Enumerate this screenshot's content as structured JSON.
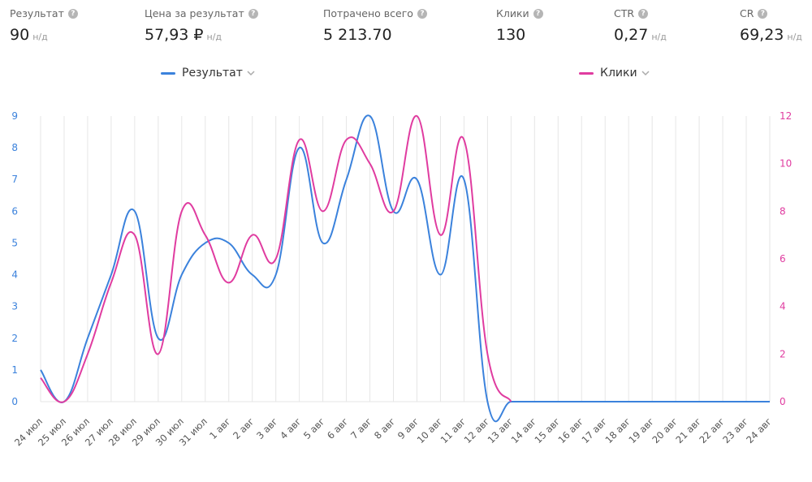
{
  "metrics": [
    {
      "label": "Результат",
      "value": "90",
      "unit": "н/д"
    },
    {
      "label": "Цена за результат",
      "value": "57,93 ₽",
      "unit": "н/д"
    },
    {
      "label": "Потрачено всего",
      "value": "5 213.70",
      "unit": ""
    },
    {
      "label": "Клики",
      "value": "130",
      "unit": ""
    },
    {
      "label": "CTR",
      "value": "0,27",
      "unit": "н/д"
    },
    {
      "label": "CR",
      "value": "69,23",
      "unit": "н/д"
    }
  ],
  "legend": {
    "left": {
      "label": "Результат",
      "color": "#3b82dc"
    },
    "right": {
      "label": "Клики",
      "color": "#e03ca0"
    }
  },
  "chart_data": {
    "type": "line",
    "categories": [
      "24 июл",
      "25 июл",
      "26 июл",
      "27 июл",
      "28 июл",
      "29 июл",
      "30 июл",
      "31 июл",
      "1 авг",
      "2 авг",
      "3 авг",
      "4 авг",
      "5 авг",
      "6 авг",
      "7 авг",
      "8 авг",
      "9 авг",
      "10 авг",
      "11 авг",
      "12 авг",
      "13 авг",
      "14 авг",
      "15 авг",
      "16 авг",
      "17 авг",
      "18 авг",
      "19 авг",
      "20 авг",
      "21 авг",
      "22 авг",
      "23 авг",
      "24 авг"
    ],
    "series": [
      {
        "name": "Результат",
        "axis": "left",
        "color": "#3b82dc",
        "values": [
          1,
          0,
          2,
          4,
          6,
          2,
          4,
          5,
          5,
          4,
          4,
          8,
          5,
          7,
          9,
          6,
          7,
          4,
          7,
          0,
          0,
          0,
          0,
          0,
          0,
          0,
          0,
          0,
          0,
          0,
          0,
          0
        ]
      },
      {
        "name": "Клики",
        "axis": "right",
        "color": "#e03ca0",
        "values": [
          1,
          0,
          2,
          5,
          7,
          2,
          8,
          7,
          5,
          7,
          6,
          11,
          8,
          11,
          10,
          8,
          12,
          7,
          11,
          2,
          0,
          null,
          null,
          null,
          null,
          null,
          null,
          null,
          null,
          null,
          null,
          null
        ]
      }
    ],
    "y_left": {
      "min": 0,
      "max": 9,
      "ticks": [
        0,
        1,
        2,
        3,
        4,
        5,
        6,
        7,
        8,
        9
      ],
      "color": "#3b82dc"
    },
    "y_right": {
      "min": 0,
      "max": 12,
      "ticks": [
        0,
        2,
        4,
        6,
        8,
        10,
        12
      ],
      "color": "#e03ca0"
    },
    "grid": "vertical"
  }
}
